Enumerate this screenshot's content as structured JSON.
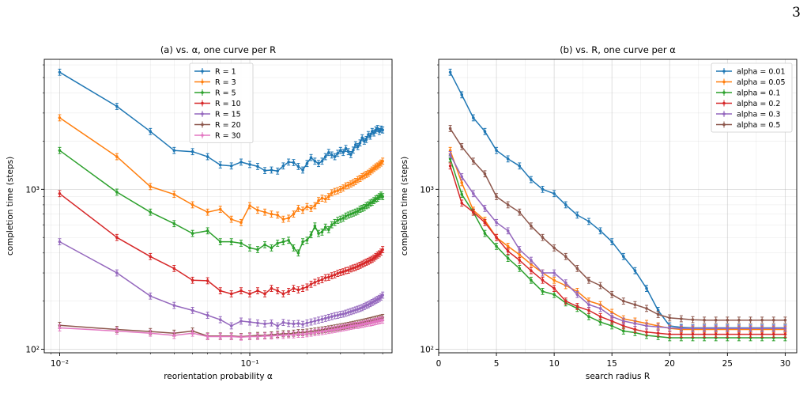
{
  "page": {
    "page_number": "3"
  },
  "chart_data": [
    {
      "type": "line",
      "title": "(a) vs. α, one curve per R",
      "xlabel": "reorientation probability α",
      "ylabel": "completion time (steps)",
      "xscale": "log",
      "yscale": "log",
      "xlim": [
        0.0083,
        0.56
      ],
      "ylim": [
        95,
        6500
      ],
      "xticks": [
        {
          "value": 0.01,
          "label": "10⁻²"
        },
        {
          "value": 0.1,
          "label": "10⁻¹"
        }
      ],
      "yticks": [
        {
          "value": 100,
          "label": "10²"
        },
        {
          "value": 1000,
          "label": "10³"
        }
      ],
      "grid": true,
      "legend_position": "upper center",
      "x": [
        0.01,
        0.02,
        0.03,
        0.04,
        0.05,
        0.06,
        0.07,
        0.08,
        0.09,
        0.1,
        0.11,
        0.12,
        0.13,
        0.14,
        0.15,
        0.16,
        0.17,
        0.18,
        0.19,
        0.2,
        0.21,
        0.22,
        0.23,
        0.24,
        0.25,
        0.26,
        0.27,
        0.28,
        0.29,
        0.3,
        0.31,
        0.32,
        0.33,
        0.34,
        0.35,
        0.36,
        0.37,
        0.38,
        0.39,
        0.4,
        0.41,
        0.42,
        0.43,
        0.44,
        0.45,
        0.46,
        0.47,
        0.48,
        0.49,
        0.5
      ],
      "series": [
        {
          "name": "R = 1",
          "color": "#1f77b4",
          "values": [
            5400,
            3300,
            2300,
            1750,
            1720,
            1600,
            1420,
            1400,
            1480,
            1430,
            1390,
            1310,
            1320,
            1300,
            1400,
            1480,
            1470,
            1390,
            1320,
            1450,
            1580,
            1500,
            1450,
            1500,
            1600,
            1700,
            1640,
            1600,
            1680,
            1750,
            1700,
            1800,
            1720,
            1650,
            1760,
            1900,
            1850,
            1950,
            2100,
            2000,
            2050,
            2200,
            2150,
            2300,
            2250,
            2350,
            2400,
            2300,
            2380,
            2350
          ]
        },
        {
          "name": "R = 3",
          "color": "#ff7f0e",
          "values": [
            2800,
            1600,
            1040,
            930,
            800,
            720,
            750,
            650,
            620,
            790,
            740,
            720,
            700,
            690,
            650,
            660,
            700,
            760,
            740,
            780,
            760,
            790,
            850,
            880,
            870,
            900,
            950,
            970,
            980,
            1000,
            1020,
            1050,
            1060,
            1080,
            1100,
            1120,
            1150,
            1170,
            1200,
            1220,
            1240,
            1260,
            1290,
            1320,
            1350,
            1380,
            1400,
            1430,
            1460,
            1500
          ]
        },
        {
          "name": "R = 5",
          "color": "#2ca02c",
          "values": [
            1750,
            960,
            720,
            610,
            530,
            550,
            470,
            470,
            460,
            430,
            420,
            450,
            430,
            460,
            470,
            480,
            430,
            400,
            470,
            480,
            520,
            590,
            530,
            540,
            580,
            560,
            600,
            620,
            640,
            650,
            660,
            680,
            690,
            700,
            710,
            720,
            730,
            750,
            760,
            770,
            790,
            800,
            820,
            830,
            850,
            870,
            880,
            900,
            920,
            900
          ]
        },
        {
          "name": "R = 10",
          "color": "#d62728",
          "values": [
            940,
            500,
            380,
            320,
            270,
            268,
            232,
            222,
            232,
            222,
            232,
            222,
            240,
            232,
            222,
            230,
            240,
            235,
            240,
            245,
            255,
            262,
            268,
            272,
            280,
            282,
            288,
            292,
            298,
            302,
            305,
            310,
            312,
            318,
            322,
            325,
            330,
            335,
            340,
            345,
            350,
            355,
            360,
            365,
            372,
            380,
            388,
            395,
            405,
            420
          ]
        },
        {
          "name": "R = 15",
          "color": "#9467bd",
          "values": [
            470,
            300,
            215,
            188,
            175,
            163,
            153,
            140,
            150,
            148,
            146,
            144,
            146,
            140,
            147,
            145,
            144,
            145,
            143,
            146,
            148,
            150,
            152,
            154,
            156,
            158,
            160,
            162,
            163,
            165,
            166,
            168,
            170,
            172,
            174,
            176,
            178,
            180,
            182,
            185,
            188,
            190,
            193,
            196,
            199,
            202,
            205,
            208,
            212,
            218
          ]
        },
        {
          "name": "R = 20",
          "color": "#8c564b",
          "values": [
            141,
            133,
            129,
            126,
            130,
            121,
            121,
            121,
            120,
            121,
            122,
            122,
            123,
            124,
            125,
            125,
            126,
            127,
            127,
            128,
            129,
            130,
            131,
            132,
            133,
            134,
            135,
            136,
            137,
            138,
            139,
            140,
            141,
            142,
            143,
            144,
            145,
            146,
            147,
            148,
            149,
            150,
            151,
            152,
            153,
            154,
            155,
            156,
            157,
            158
          ]
        },
        {
          "name": "R = 30",
          "color": "#e377c2",
          "values": [
            136,
            130,
            126,
            122,
            126,
            120,
            120,
            120,
            119,
            120,
            120,
            121,
            121,
            122,
            122,
            123,
            123,
            124,
            124,
            125,
            126,
            127,
            128,
            129,
            130,
            131,
            132,
            133,
            134,
            135,
            136,
            137,
            138,
            139,
            140,
            141,
            141,
            142,
            143,
            144,
            145,
            146,
            146,
            147,
            148,
            149,
            150,
            151,
            152,
            152
          ]
        }
      ]
    },
    {
      "type": "line",
      "title": "(b) vs. R, one curve per α",
      "xlabel": "search radius R",
      "ylabel": "completion time (steps)",
      "xscale": "linear",
      "yscale": "log",
      "xlim": [
        0,
        31
      ],
      "ylim": [
        95,
        6500
      ],
      "xticks": [
        {
          "value": 0,
          "label": "0"
        },
        {
          "value": 5,
          "label": "5"
        },
        {
          "value": 10,
          "label": "10"
        },
        {
          "value": 15,
          "label": "15"
        },
        {
          "value": 20,
          "label": "20"
        },
        {
          "value": 25,
          "label": "25"
        },
        {
          "value": 30,
          "label": "30"
        }
      ],
      "yticks": [
        {
          "value": 100,
          "label": "10²"
        },
        {
          "value": 1000,
          "label": "10³"
        }
      ],
      "grid": true,
      "legend_position": "upper right",
      "x": [
        1,
        2,
        3,
        4,
        5,
        6,
        7,
        8,
        9,
        10,
        11,
        12,
        13,
        14,
        15,
        16,
        17,
        18,
        19,
        20,
        21,
        22,
        23,
        24,
        25,
        26,
        27,
        28,
        29,
        30
      ],
      "series": [
        {
          "name": "alpha = 0.01",
          "color": "#1f77b4",
          "values": [
            5400,
            3900,
            2800,
            2300,
            1750,
            1550,
            1400,
            1150,
            1000,
            940,
            800,
            690,
            630,
            550,
            470,
            380,
            310,
            240,
            175,
            140,
            137,
            136,
            136,
            136,
            136,
            136,
            136,
            136,
            136,
            136
          ]
        },
        {
          "name": "alpha = 0.05",
          "color": "#ff7f0e",
          "values": [
            1750,
            1100,
            740,
            640,
            500,
            440,
            390,
            340,
            300,
            270,
            250,
            230,
            200,
            190,
            170,
            155,
            150,
            145,
            140,
            135,
            133,
            133,
            133,
            133,
            133,
            133,
            133,
            133,
            133,
            133
          ]
        },
        {
          "name": "alpha = 0.1",
          "color": "#2ca02c",
          "values": [
            1550,
            930,
            720,
            530,
            440,
            370,
            320,
            270,
            230,
            220,
            195,
            180,
            160,
            148,
            140,
            130,
            127,
            122,
            120,
            118,
            118,
            118,
            118,
            118,
            118,
            118,
            118,
            118,
            118,
            118
          ]
        },
        {
          "name": "alpha = 0.2",
          "color": "#d62728",
          "values": [
            1400,
            820,
            720,
            620,
            500,
            410,
            360,
            310,
            270,
            240,
            200,
            185,
            175,
            160,
            150,
            140,
            133,
            128,
            126,
            124,
            124,
            124,
            124,
            124,
            124,
            124,
            124,
            124,
            124,
            124
          ]
        },
        {
          "name": "alpha = 0.3",
          "color": "#9467bd",
          "values": [
            1650,
            1200,
            940,
            760,
            620,
            550,
            420,
            360,
            300,
            300,
            260,
            220,
            190,
            180,
            160,
            150,
            145,
            140,
            138,
            136,
            135,
            135,
            135,
            135,
            135,
            135,
            135,
            135,
            135,
            135
          ]
        },
        {
          "name": "alpha = 0.5",
          "color": "#8c564b",
          "values": [
            2400,
            1850,
            1500,
            1250,
            900,
            800,
            720,
            590,
            500,
            430,
            380,
            320,
            270,
            250,
            220,
            200,
            190,
            180,
            165,
            157,
            155,
            153,
            152,
            152,
            152,
            152,
            152,
            152,
            152,
            152
          ]
        }
      ]
    }
  ]
}
